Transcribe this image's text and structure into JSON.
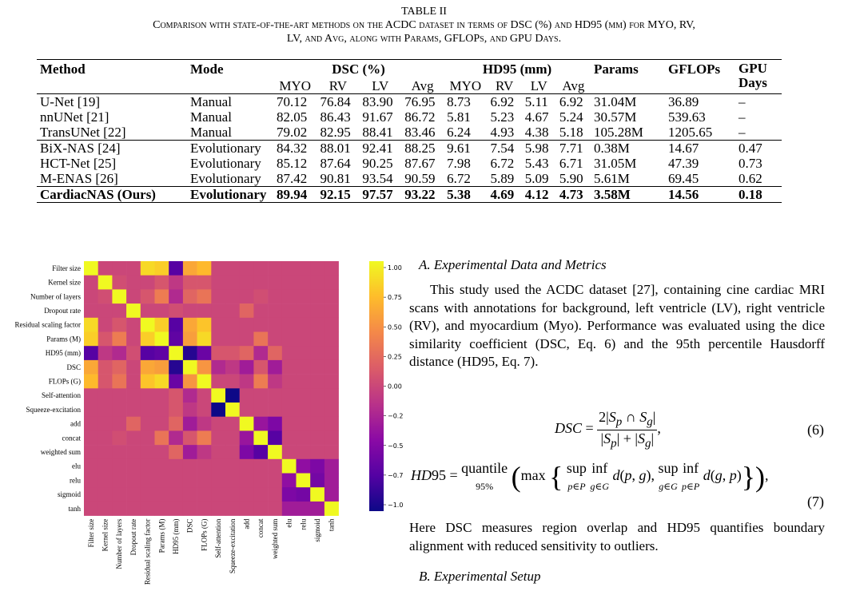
{
  "table": {
    "label": "TABLE II",
    "caption_line1": "Comparison with state-of-the-art methods on the ACDC dataset in terms of DSC (%) and HD95 (mm) for MYO, RV,",
    "caption_line2": "LV, and Avg, along with Params, GFLOPs, and GPU Days.",
    "headers": {
      "method": "Method",
      "mode": "Mode",
      "dsc": "DSC (%)",
      "hd95": "HD95 (mm)",
      "params": "Params",
      "gflops": "GFLOPs",
      "gpu": "GPU Days"
    },
    "subheaders": [
      "MYO",
      "RV",
      "LV",
      "Avg",
      "MYO",
      "RV",
      "LV",
      "Avg"
    ],
    "rows": [
      [
        "U-Net [19]",
        "Manual",
        "70.12",
        "76.84",
        "83.90",
        "76.95",
        "8.73",
        "6.92",
        "5.11",
        "6.92",
        "31.04M",
        "36.89",
        "–"
      ],
      [
        "nnUNet [21]",
        "Manual",
        "82.05",
        "86.43",
        "91.67",
        "86.72",
        "5.81",
        "5.23",
        "4.67",
        "5.24",
        "30.57M",
        "539.63",
        "–"
      ],
      [
        "TransUNet [22]",
        "Manual",
        "79.02",
        "82.95",
        "88.41",
        "83.46",
        "6.24",
        "4.93",
        "4.38",
        "5.18",
        "105.28M",
        "1205.65",
        "–"
      ],
      [
        "BiX-NAS [24]",
        "Evolutionary",
        "84.32",
        "88.01",
        "92.41",
        "88.25",
        "9.61",
        "7.54",
        "5.98",
        "7.71",
        "0.38M",
        "14.67",
        "0.47"
      ],
      [
        "HCT-Net [25]",
        "Evolutionary",
        "85.12",
        "87.64",
        "90.25",
        "87.67",
        "7.98",
        "6.72",
        "5.43",
        "6.71",
        "31.05M",
        "47.39",
        "0.73"
      ],
      [
        "M-ENAS [26]",
        "Evolutionary",
        "87.42",
        "90.81",
        "93.54",
        "90.59",
        "6.72",
        "5.89",
        "5.09",
        "5.90",
        "5.61M",
        "69.45",
        "0.62"
      ],
      [
        "CardiacNAS (Ours)",
        "Evolutionary",
        "89.94",
        "92.15",
        "97.57",
        "93.22",
        "5.38",
        "4.69",
        "4.12",
        "4.73",
        "3.58M",
        "14.56",
        "0.18"
      ]
    ]
  },
  "chart_data": {
    "type": "heatmap",
    "labels": [
      "Filter size",
      "Kernel size",
      "Number of layers",
      "Dropout rate",
      "Residual scaling factor",
      "Params (M)",
      "HD95 (mm)",
      "DSC",
      "FLOPs (G)",
      "Self-attention",
      "Squeeze-excitation",
      "add",
      "concat",
      "weighted sum",
      "elu",
      "relu",
      "sigmoid",
      "tanh"
    ],
    "colorbar_ticks": [
      "1.00",
      "0.75",
      "0.50",
      "0.25",
      "0.00",
      "−0.25",
      "−0.50",
      "−0.75",
      "−1.00"
    ],
    "vmin": -1,
    "vmax": 1,
    "colormap": "plasma",
    "matrix": [
      [
        1,
        0,
        0,
        0,
        0.85,
        0.8,
        -0.7,
        0.6,
        0.7,
        0,
        0,
        0,
        0,
        0,
        0,
        0,
        0,
        0
      ],
      [
        0,
        1,
        0.05,
        0,
        0,
        0.1,
        -0.1,
        0.1,
        0.1,
        0,
        0,
        0,
        0,
        0,
        0,
        0,
        0,
        0
      ],
      [
        0,
        0.05,
        1,
        0,
        0.1,
        0.35,
        -0.2,
        0.2,
        0.3,
        0,
        0,
        0,
        0.05,
        0,
        0,
        0,
        0,
        0
      ],
      [
        0,
        0,
        0,
        1,
        0,
        0,
        0.05,
        0,
        0,
        0,
        0,
        0.2,
        0,
        0,
        0,
        0,
        0,
        0
      ],
      [
        0.85,
        0,
        0.1,
        0,
        1,
        0.8,
        -0.7,
        0.6,
        0.75,
        0,
        0,
        0,
        0,
        0,
        0,
        0,
        0,
        0
      ],
      [
        0.8,
        0.1,
        0.35,
        0,
        0.8,
        1,
        -0.65,
        0.55,
        0.85,
        0,
        0,
        0,
        0.3,
        0,
        0,
        0,
        0,
        0
      ],
      [
        -0.7,
        -0.1,
        -0.2,
        0.05,
        -0.7,
        -0.65,
        1,
        -0.9,
        -0.6,
        0.1,
        0.1,
        0.2,
        -0.2,
        0.2,
        0,
        0,
        0,
        0
      ],
      [
        0.6,
        0.1,
        0.2,
        0,
        0.6,
        0.55,
        -0.9,
        1,
        0.5,
        -0.2,
        -0.1,
        -0.3,
        0.1,
        -0.3,
        0,
        0,
        0,
        0
      ],
      [
        0.7,
        0.1,
        0.3,
        0,
        0.75,
        0.85,
        -0.6,
        0.5,
        1,
        0,
        0,
        -0.1,
        0.35,
        -0.1,
        0,
        0,
        0,
        0
      ],
      [
        0,
        0,
        0,
        0,
        0,
        0,
        0.1,
        -0.2,
        0,
        1,
        -1,
        0,
        0,
        0,
        0,
        0,
        0,
        0
      ],
      [
        0,
        0,
        0,
        0,
        0,
        0,
        0.1,
        -0.1,
        0,
        -1,
        1,
        0,
        0,
        0,
        0,
        0,
        0,
        0
      ],
      [
        0,
        0,
        0,
        0.2,
        0,
        0,
        0.2,
        -0.3,
        -0.1,
        0,
        0,
        1,
        -0.35,
        -0.5,
        0,
        0,
        0,
        0
      ],
      [
        0,
        0,
        0.05,
        0,
        0,
        0.3,
        -0.2,
        0.1,
        0.35,
        0,
        0,
        -0.35,
        1,
        -0.7,
        0,
        0,
        0,
        0
      ],
      [
        0,
        0,
        0,
        0,
        0,
        0,
        0.2,
        -0.3,
        -0.1,
        0,
        0,
        -0.5,
        -0.7,
        1,
        0,
        0,
        0,
        0
      ],
      [
        0,
        0,
        0,
        0,
        0,
        0,
        0,
        0,
        0,
        0,
        0,
        0,
        0,
        0,
        1,
        -0.4,
        -0.5,
        -0.3
      ],
      [
        0,
        0,
        0,
        0,
        0,
        0,
        0,
        0,
        0,
        0,
        0,
        0,
        0,
        0,
        -0.4,
        1,
        -0.55,
        -0.3
      ],
      [
        0,
        0,
        0,
        0,
        0,
        0,
        0,
        0,
        0,
        0,
        0,
        0,
        0,
        0,
        -0.5,
        -0.55,
        1,
        -0.3
      ],
      [
        0,
        0,
        0,
        0,
        0,
        0,
        0,
        0,
        0,
        0,
        0,
        0,
        0,
        0,
        -0.3,
        -0.3,
        -0.3,
        1
      ]
    ]
  },
  "section_a": {
    "heading": "A. Experimental Data and Metrics",
    "para1": "This study used the ACDC dataset [27], containing cine cardiac MRI scans with annotations for background, left ventricle (LV), right ventricle (RV), and myocardium (Myo). Performance was evaluated using the dice similarity coefficient (DSC, Eq. 6) and the 95th percentile Hausdorff distance (HD95, Eq. 7).",
    "eq6_number": "(6)",
    "eq7_number": "(7)",
    "para2": "Here DSC measures region overlap and HD95 quantifies boundary alignment with reduced sensitivity to outliers."
  },
  "section_b": {
    "heading": "B. Experimental Setup"
  }
}
